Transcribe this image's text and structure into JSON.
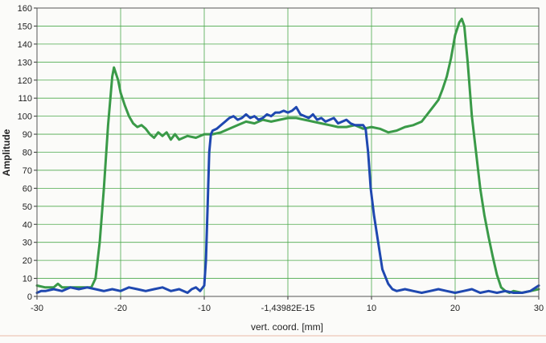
{
  "chart_data": {
    "type": "line",
    "title": "",
    "xlabel": "vert. coord. [mm]",
    "ylabel": "Amplitude",
    "xlim": [
      -30,
      30
    ],
    "ylim": [
      0,
      160
    ],
    "grid": true,
    "x_ticks": [
      -30,
      -20,
      -10,
      0,
      10,
      20,
      30
    ],
    "x_tick_labels": [
      "-30",
      "-20",
      "-10",
      "-1,43982E-15",
      "10",
      "20",
      "30"
    ],
    "y_ticks": [
      0,
      10,
      20,
      30,
      40,
      50,
      60,
      70,
      80,
      90,
      100,
      110,
      120,
      130,
      140,
      150,
      160
    ],
    "colors": {
      "green": "#3a9a48",
      "blue": "#1f48b0",
      "grid": "#4caa4c"
    },
    "series": [
      {
        "color": "green",
        "points": [
          [
            -30,
            6
          ],
          [
            -29,
            5
          ],
          [
            -28,
            5
          ],
          [
            -27.5,
            7
          ],
          [
            -27,
            5
          ],
          [
            -26,
            5
          ],
          [
            -25,
            5
          ],
          [
            -24,
            5
          ],
          [
            -23.5,
            5
          ],
          [
            -23,
            10
          ],
          [
            -22.5,
            30
          ],
          [
            -22,
            60
          ],
          [
            -21.5,
            95
          ],
          [
            -21,
            122
          ],
          [
            -20.8,
            127
          ],
          [
            -20.3,
            120
          ],
          [
            -20,
            113
          ],
          [
            -19.5,
            106
          ],
          [
            -19,
            100
          ],
          [
            -18.5,
            96
          ],
          [
            -18,
            94
          ],
          [
            -17.5,
            95
          ],
          [
            -17,
            93
          ],
          [
            -16.5,
            90
          ],
          [
            -16,
            88
          ],
          [
            -15.5,
            91
          ],
          [
            -15,
            89
          ],
          [
            -14.5,
            91
          ],
          [
            -14,
            87
          ],
          [
            -13.5,
            90
          ],
          [
            -13,
            87
          ],
          [
            -12.5,
            88
          ],
          [
            -12,
            89
          ],
          [
            -11,
            88
          ],
          [
            -10,
            90
          ],
          [
            -9,
            90
          ],
          [
            -8,
            91
          ],
          [
            -7,
            93
          ],
          [
            -6,
            95
          ],
          [
            -5,
            97
          ],
          [
            -4,
            96
          ],
          [
            -3,
            98
          ],
          [
            -2,
            97
          ],
          [
            -1,
            98
          ],
          [
            0,
            99
          ],
          [
            1,
            99
          ],
          [
            2,
            98
          ],
          [
            3,
            97
          ],
          [
            4,
            96
          ],
          [
            5,
            95
          ],
          [
            6,
            94
          ],
          [
            7,
            94
          ],
          [
            8,
            95
          ],
          [
            9,
            93
          ],
          [
            10,
            94
          ],
          [
            11,
            93
          ],
          [
            12,
            91
          ],
          [
            13,
            92
          ],
          [
            14,
            94
          ],
          [
            15,
            95
          ],
          [
            16,
            97
          ],
          [
            16.5,
            100
          ],
          [
            17,
            103
          ],
          [
            17.5,
            106
          ],
          [
            18,
            109
          ],
          [
            18.5,
            115
          ],
          [
            19,
            122
          ],
          [
            19.5,
            132
          ],
          [
            20,
            145
          ],
          [
            20.5,
            152
          ],
          [
            20.8,
            154
          ],
          [
            21.1,
            150
          ],
          [
            21.5,
            130
          ],
          [
            22,
            100
          ],
          [
            22.5,
            80
          ],
          [
            23,
            60
          ],
          [
            23.5,
            45
          ],
          [
            24,
            33
          ],
          [
            24.5,
            22
          ],
          [
            25,
            12
          ],
          [
            25.5,
            5
          ],
          [
            26,
            3
          ],
          [
            26.5,
            2
          ],
          [
            27,
            3
          ],
          [
            28,
            2
          ],
          [
            29,
            3
          ],
          [
            30,
            4
          ]
        ]
      },
      {
        "color": "blue",
        "points": [
          [
            -30,
            2
          ],
          [
            -29.5,
            3
          ],
          [
            -29,
            3
          ],
          [
            -28,
            4
          ],
          [
            -27,
            3
          ],
          [
            -26,
            5
          ],
          [
            -25,
            4
          ],
          [
            -24,
            5
          ],
          [
            -23,
            4
          ],
          [
            -22,
            3
          ],
          [
            -21,
            4
          ],
          [
            -20,
            3
          ],
          [
            -19,
            5
          ],
          [
            -18,
            4
          ],
          [
            -17,
            3
          ],
          [
            -16,
            4
          ],
          [
            -15,
            5
          ],
          [
            -14,
            3
          ],
          [
            -13,
            4
          ],
          [
            -12,
            2
          ],
          [
            -11.5,
            4
          ],
          [
            -11,
            5
          ],
          [
            -10.5,
            3
          ],
          [
            -10,
            6
          ],
          [
            -9.8,
            20
          ],
          [
            -9.6,
            50
          ],
          [
            -9.4,
            80
          ],
          [
            -9.2,
            90
          ],
          [
            -9,
            92
          ],
          [
            -8.5,
            93
          ],
          [
            -8,
            95
          ],
          [
            -7.5,
            97
          ],
          [
            -7,
            99
          ],
          [
            -6.5,
            100
          ],
          [
            -6,
            98
          ],
          [
            -5.5,
            99
          ],
          [
            -5,
            101
          ],
          [
            -4.5,
            99
          ],
          [
            -4,
            100
          ],
          [
            -3.5,
            98
          ],
          [
            -3,
            99
          ],
          [
            -2.5,
            101
          ],
          [
            -2,
            100
          ],
          [
            -1.5,
            102
          ],
          [
            -1,
            102
          ],
          [
            -0.5,
            103
          ],
          [
            0,
            102
          ],
          [
            0.5,
            103
          ],
          [
            1,
            105
          ],
          [
            1.5,
            101
          ],
          [
            2,
            100
          ],
          [
            2.5,
            99
          ],
          [
            3,
            101
          ],
          [
            3.5,
            98
          ],
          [
            4,
            99
          ],
          [
            4.5,
            97
          ],
          [
            5,
            98
          ],
          [
            5.5,
            99
          ],
          [
            6,
            96
          ],
          [
            6.5,
            97
          ],
          [
            7,
            98
          ],
          [
            7.5,
            96
          ],
          [
            8,
            95
          ],
          [
            8.5,
            95
          ],
          [
            9,
            95
          ],
          [
            9.3,
            93
          ],
          [
            9.6,
            80
          ],
          [
            9.9,
            60
          ],
          [
            10.3,
            45
          ],
          [
            10.8,
            30
          ],
          [
            11.3,
            15
          ],
          [
            12,
            7
          ],
          [
            12.5,
            4
          ],
          [
            13,
            3
          ],
          [
            14,
            4
          ],
          [
            15,
            3
          ],
          [
            16,
            2
          ],
          [
            17,
            3
          ],
          [
            18,
            4
          ],
          [
            19,
            3
          ],
          [
            20,
            2
          ],
          [
            21,
            3
          ],
          [
            22,
            4
          ],
          [
            23,
            2
          ],
          [
            24,
            3
          ],
          [
            25,
            2
          ],
          [
            26,
            3
          ],
          [
            27,
            2
          ],
          [
            28,
            2
          ],
          [
            29,
            3
          ],
          [
            30,
            6
          ]
        ]
      }
    ]
  }
}
